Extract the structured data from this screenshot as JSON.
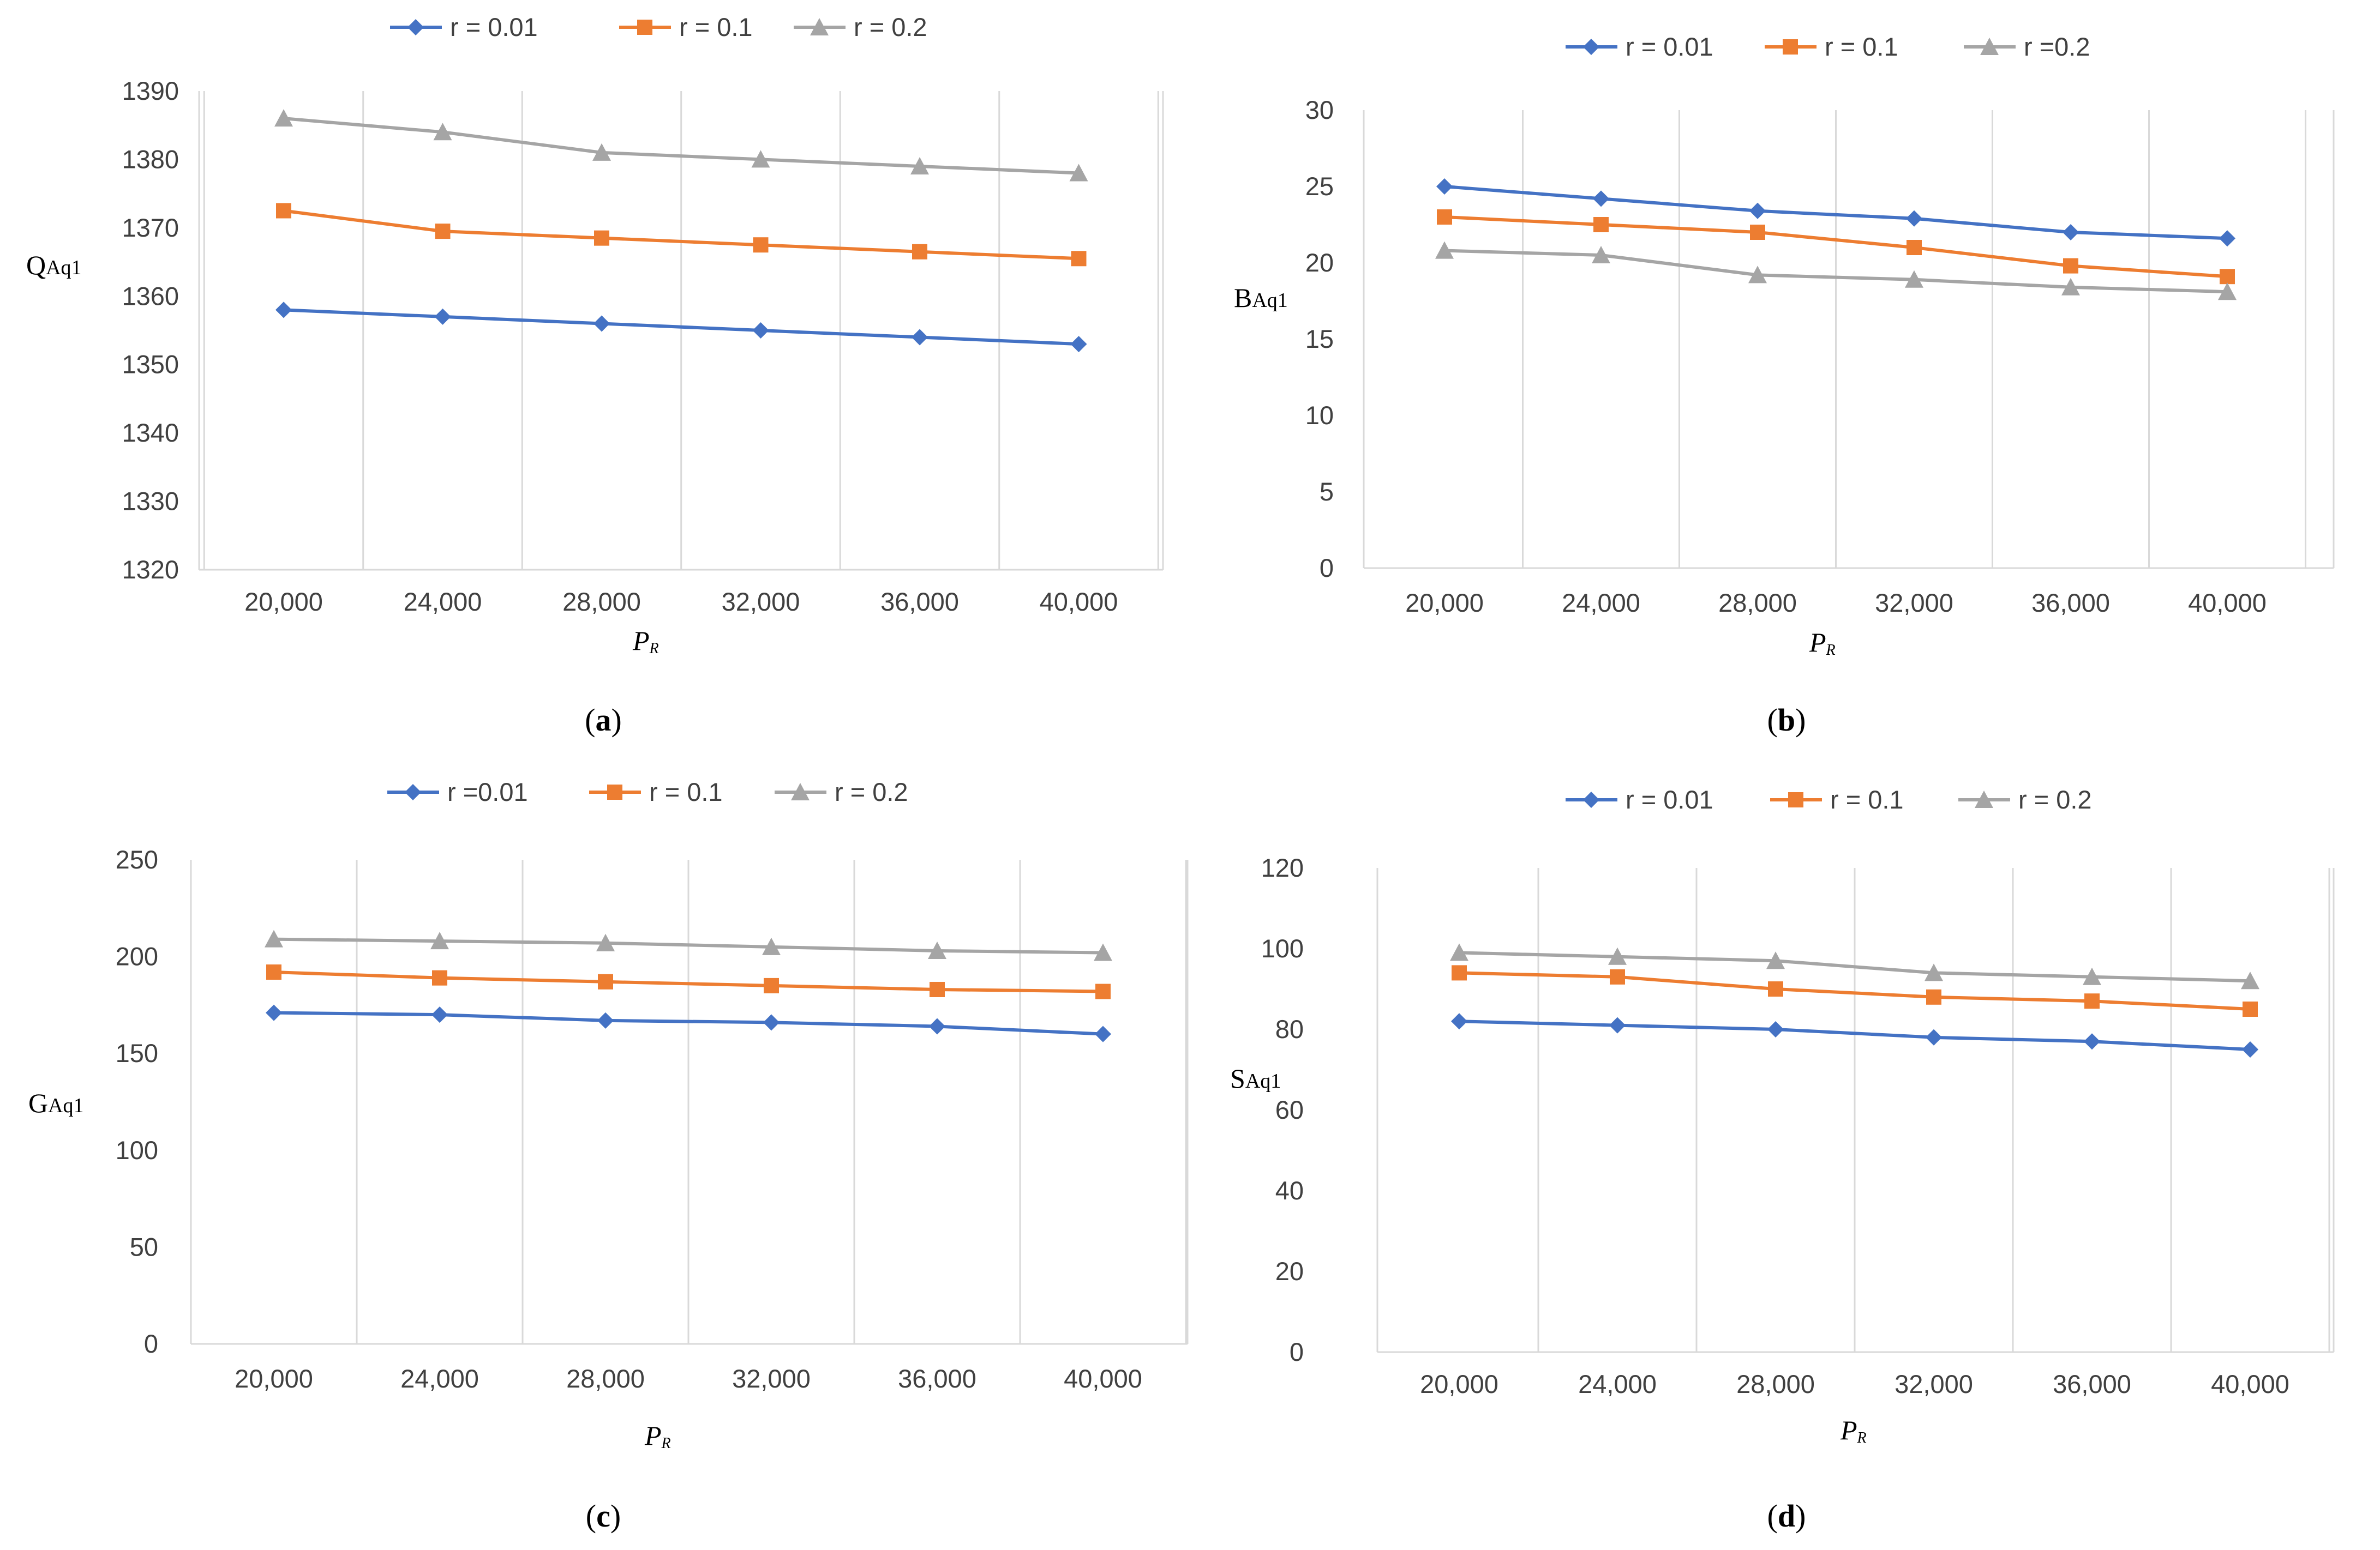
{
  "figure": {
    "colors": {
      "r001": "#4472C4",
      "r01": "#ED7D31",
      "r02": "#A5A5A5",
      "grid": "#D9D9D9",
      "axis": "#D9D9D9"
    },
    "markers": {
      "r001": "diamond",
      "r01": "square",
      "r02": "triangle"
    }
  },
  "chart_data": [
    {
      "id": "a",
      "type": "line",
      "caption_letter": "a",
      "ylabel": "Q",
      "ylabel_sub": "Aq1",
      "xlabel": "P",
      "xlabel_sub": "R",
      "ylim": [
        1320,
        1390
      ],
      "ytick_step": 10,
      "yticks": [
        "1320",
        "1330",
        "1340",
        "1350",
        "1360",
        "1370",
        "1380",
        "1390"
      ],
      "categories": [
        "20,000",
        "24,000",
        "28,000",
        "32,000",
        "36,000",
        "40,000"
      ],
      "legend": [
        "r = 0.01",
        "r = 0.1",
        "r = 0.2"
      ],
      "series": [
        {
          "name": "r = 0.01",
          "key": "r001",
          "values": [
            1358,
            1357,
            1356,
            1355,
            1354,
            1353
          ]
        },
        {
          "name": "r = 0.1",
          "key": "r01",
          "values": [
            1372.5,
            1369.5,
            1368.5,
            1367.5,
            1366.5,
            1365.5
          ]
        },
        {
          "name": "r = 0.2",
          "key": "r02",
          "values": [
            1386,
            1384,
            1381,
            1380,
            1379,
            1378
          ]
        }
      ]
    },
    {
      "id": "b",
      "type": "line",
      "caption_letter": "b",
      "ylabel": "B",
      "ylabel_sub": "Aq1",
      "xlabel": "P",
      "xlabel_sub": "R",
      "ylim": [
        0,
        30
      ],
      "ytick_step": 5,
      "yticks": [
        "0",
        "5",
        "10",
        "15",
        "20",
        "25",
        "30"
      ],
      "categories": [
        "20,000",
        "24,000",
        "28,000",
        "32,000",
        "36,000",
        "40,000"
      ],
      "legend": [
        "r = 0.01",
        "r = 0.1",
        "r =0.2"
      ],
      "series": [
        {
          "name": "r = 0.01",
          "key": "r001",
          "values": [
            25,
            24.2,
            23.4,
            22.9,
            22,
            21.6
          ]
        },
        {
          "name": "r = 0.1",
          "key": "r01",
          "values": [
            23,
            22.5,
            22,
            21,
            19.8,
            19.1
          ]
        },
        {
          "name": "r =0.2",
          "key": "r02",
          "values": [
            20.8,
            20.5,
            19.2,
            18.9,
            18.4,
            18.1
          ]
        }
      ]
    },
    {
      "id": "c",
      "type": "line",
      "caption_letter": "c",
      "ylabel": "G",
      "ylabel_sub": "Aq1",
      "xlabel": "P",
      "xlabel_sub": "R",
      "ylim": [
        0,
        250
      ],
      "ytick_step": 50,
      "yticks": [
        "0",
        "50",
        "100",
        "150",
        "200",
        "250"
      ],
      "categories": [
        "20,000",
        "24,000",
        "28,000",
        "32,000",
        "36,000",
        "40,000"
      ],
      "legend": [
        "r =0.01",
        "r = 0.1",
        "r = 0.2"
      ],
      "series": [
        {
          "name": "r =0.01",
          "key": "r001",
          "values": [
            171,
            170,
            167,
            166,
            164,
            160
          ]
        },
        {
          "name": "r = 0.1",
          "key": "r01",
          "values": [
            192,
            189,
            187,
            185,
            183,
            182
          ]
        },
        {
          "name": "r = 0.2",
          "key": "r02",
          "values": [
            209,
            208,
            207,
            205,
            203,
            202
          ]
        }
      ]
    },
    {
      "id": "d",
      "type": "line",
      "caption_letter": "d",
      "ylabel": "S",
      "ylabel_sub": "Aq1",
      "xlabel": "P",
      "xlabel_sub": "R",
      "ylim": [
        0,
        120
      ],
      "ytick_step": 20,
      "yticks": [
        "0",
        "20",
        "40",
        "60",
        "80",
        "100",
        "120"
      ],
      "categories": [
        "20,000",
        "24,000",
        "28,000",
        "32,000",
        "36,000",
        "40,000"
      ],
      "legend": [
        "r = 0.01",
        "r = 0.1",
        "r = 0.2"
      ],
      "series": [
        {
          "name": "r = 0.01",
          "key": "r001",
          "values": [
            82,
            81,
            80,
            78,
            77,
            75
          ]
        },
        {
          "name": "r = 0.1",
          "key": "r01",
          "values": [
            94,
            93,
            90,
            88,
            87,
            85
          ]
        },
        {
          "name": "r = 0.2",
          "key": "r02",
          "values": [
            99,
            98,
            97,
            94,
            93,
            92
          ]
        }
      ]
    }
  ]
}
